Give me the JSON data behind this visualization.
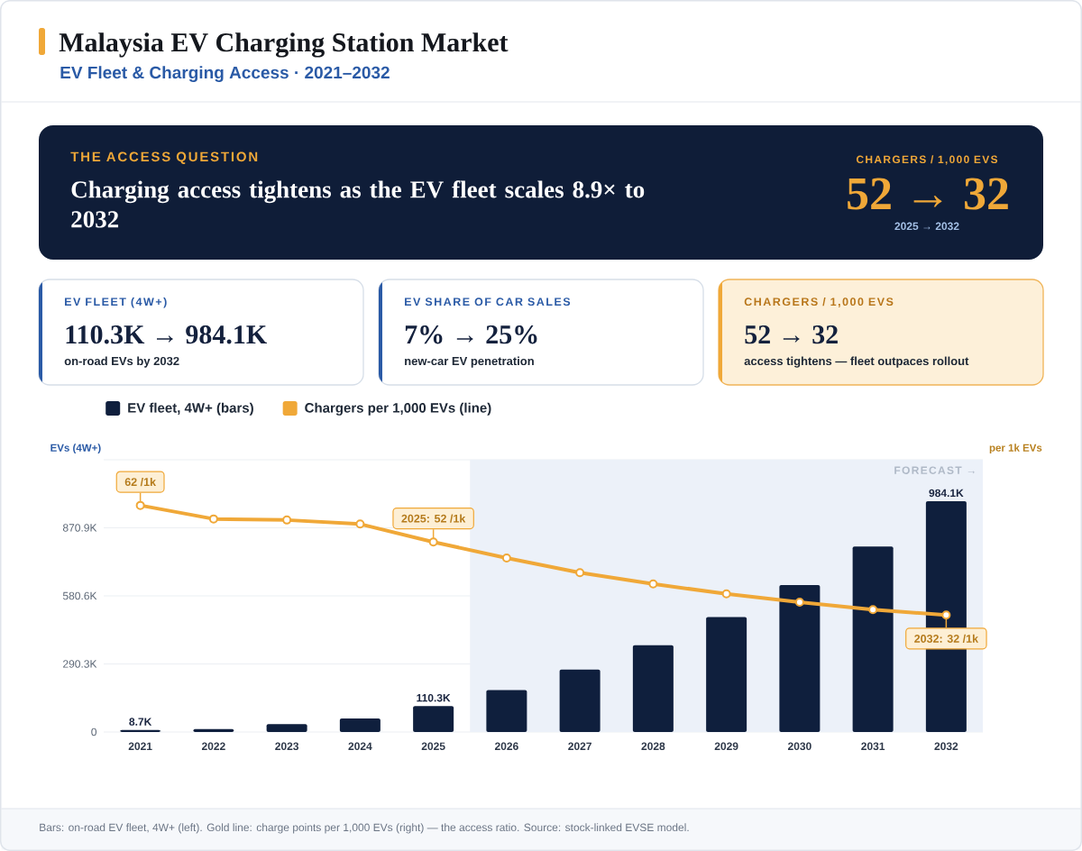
{
  "chart_data": {
    "type": "bar",
    "title": "Malaysia EV Charging Station Market",
    "subtitle": "EV Fleet & Charging Access · 2021–2032",
    "ylabel": "EVs (4W+)",
    "y2label": "per 1k EVs",
    "x": [
      2021,
      2022,
      2023,
      2024,
      2025,
      2026,
      2027,
      2028,
      2029,
      2030,
      2031,
      2032
    ],
    "series": [
      {
        "name": "EV fleet, 4W+ (bars)",
        "color": "#0f1f3d",
        "values": [
          8.7,
          12,
          34,
          58,
          110.3,
          179,
          266,
          370,
          490,
          627,
          791,
          984.1
        ],
        "value_labels": [
          "8.7K",
          null,
          null,
          null,
          "110.3K",
          null,
          null,
          null,
          null,
          null,
          null,
          "984.1K"
        ]
      },
      {
        "name": "Chargers per 1,000 EVs (line)",
        "type": "line",
        "axis": "y2",
        "color": "#f0a838",
        "values": [
          62,
          58.3,
          58,
          56.9,
          52,
          47.6,
          43.6,
          40.5,
          37.8,
          35.5,
          33.5,
          32
        ],
        "value_labels": [
          "62 /1k",
          null,
          null,
          null,
          "2025: 52 /1k",
          null,
          null,
          null,
          null,
          null,
          null,
          "2032: 32 /1k"
        ]
      }
    ],
    "marker": "circle",
    "xlim": [
      2020.5,
      2032.5
    ],
    "xticks": [
      2021,
      2022,
      2023,
      2024,
      2025,
      2026,
      2027,
      2028,
      2029,
      2030,
      2031,
      2032
    ],
    "ylim": [
      0,
      1161.2
    ],
    "yticks": [
      0,
      {
        "value": 290.3,
        "label": "290.3K"
      },
      {
        "value": 580.6,
        "label": "580.6K"
      },
      {
        "value": 870.9,
        "label": "870.9K"
      },
      {
        "value": 1161.2,
        "label": null
      }
    ],
    "y2lim": [
      0,
      74.5
    ],
    "grid": "y",
    "legend": "top left",
    "bands": [
      {
        "axis": "x",
        "from": 2025.5,
        "to": 2032.5,
        "label": "FORECAST →",
        "color": "#ecf1f9"
      }
    ],
    "annotations": [
      "THE ACCESS QUESTION",
      "Charging access tightens as the EV fleet scales 8.9× to 2032",
      "CHARGERS / 1,000 EVS",
      "52 → 32",
      "2025 → 2032",
      "EV FLEET (4W+)",
      "110.3K → 984.1K",
      "on-road EVs by 2032",
      "EV SHARE OF CAR SALES",
      "7% → 25%",
      "new-car EV penetration",
      "CHARGERS / 1,000 EVS",
      "52 → 32",
      "access tightens — fleet outpaces rollout",
      "Bars: on-road EV fleet, 4W+ (left). Gold line: charge points per 1,000 EVs (right) — the access ratio. Source: stock-linked EVSE model."
    ]
  }
}
